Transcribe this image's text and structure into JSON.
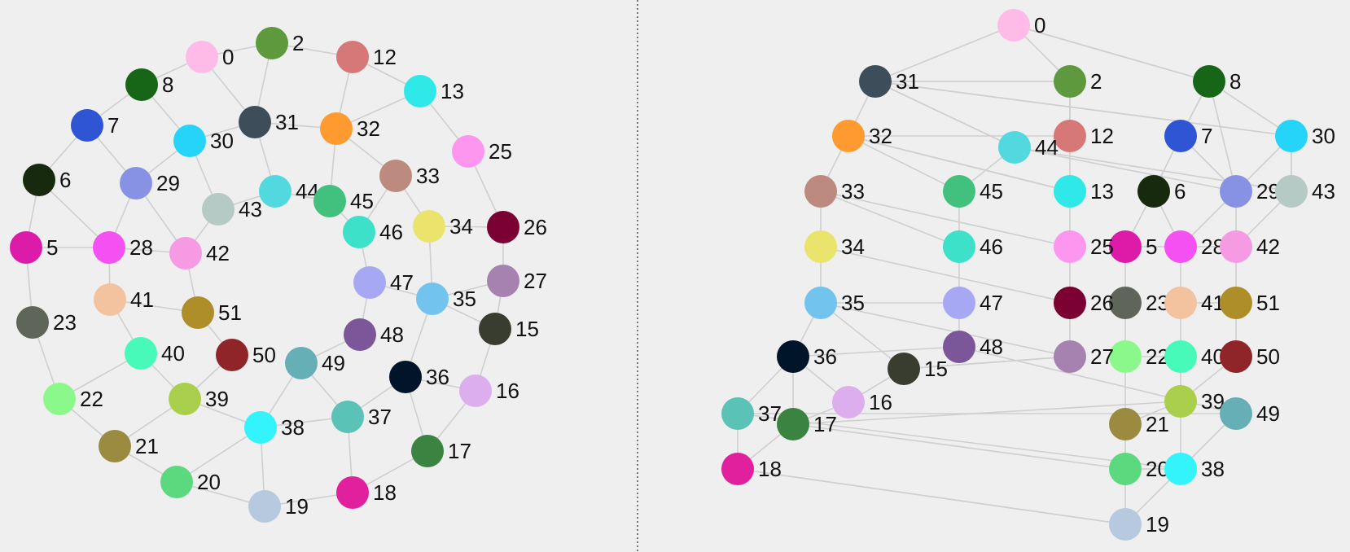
{
  "graph": {
    "nodes": [
      {
        "id": 0,
        "color": "#FFBBE8"
      },
      {
        "id": 2,
        "color": "#5E993D"
      },
      {
        "id": 5,
        "color": "#DC1BA8"
      },
      {
        "id": 6,
        "color": "#172A0E"
      },
      {
        "id": 7,
        "color": "#2F55D4"
      },
      {
        "id": 8,
        "color": "#176617"
      },
      {
        "id": 12,
        "color": "#D57877"
      },
      {
        "id": 13,
        "color": "#2EE9E8"
      },
      {
        "id": 15,
        "color": "#393D2F"
      },
      {
        "id": 16,
        "color": "#DDAEEE"
      },
      {
        "id": 17,
        "color": "#3A8341"
      },
      {
        "id": 18,
        "color": "#E0209C"
      },
      {
        "id": 19,
        "color": "#B6C9DF"
      },
      {
        "id": 20,
        "color": "#5CD97F"
      },
      {
        "id": 21,
        "color": "#9A8B40"
      },
      {
        "id": 22,
        "color": "#8BF88B"
      },
      {
        "id": 23,
        "color": "#5F6559"
      },
      {
        "id": 25,
        "color": "#FD96EF"
      },
      {
        "id": 26,
        "color": "#7A0131"
      },
      {
        "id": 27,
        "color": "#A582B0"
      },
      {
        "id": 28,
        "color": "#F550F1"
      },
      {
        "id": 29,
        "color": "#8892E5"
      },
      {
        "id": 30,
        "color": "#25D4F8"
      },
      {
        "id": 31,
        "color": "#3D4E5A"
      },
      {
        "id": 32,
        "color": "#FE9A30"
      },
      {
        "id": 33,
        "color": "#BC8A7E"
      },
      {
        "id": 34,
        "color": "#EAE46C"
      },
      {
        "id": 35,
        "color": "#73C3EF"
      },
      {
        "id": 36,
        "color": "#00142A"
      },
      {
        "id": 37,
        "color": "#5BC2B7"
      },
      {
        "id": 38,
        "color": "#33F4FB"
      },
      {
        "id": 39,
        "color": "#AACF4D"
      },
      {
        "id": 40,
        "color": "#47FABA"
      },
      {
        "id": 41,
        "color": "#F3C29E"
      },
      {
        "id": 42,
        "color": "#F69AE4"
      },
      {
        "id": 43,
        "color": "#B5C9C5"
      },
      {
        "id": 44,
        "color": "#51D9DF"
      },
      {
        "id": 45,
        "color": "#41C17D"
      },
      {
        "id": 46,
        "color": "#3DE0C9"
      },
      {
        "id": 47,
        "color": "#A6A8F4"
      },
      {
        "id": 48,
        "color": "#7B5699"
      },
      {
        "id": 49,
        "color": "#66AFB6"
      },
      {
        "id": 50,
        "color": "#902529"
      },
      {
        "id": 51,
        "color": "#AE8E29"
      }
    ],
    "edges": [
      [
        0,
        2
      ],
      [
        0,
        8
      ],
      [
        0,
        31
      ],
      [
        2,
        12
      ],
      [
        2,
        31
      ],
      [
        12,
        13
      ],
      [
        12,
        32
      ],
      [
        13,
        32
      ],
      [
        13,
        25
      ],
      [
        8,
        7
      ],
      [
        8,
        30
      ],
      [
        7,
        6
      ],
      [
        7,
        29
      ],
      [
        6,
        5
      ],
      [
        6,
        28
      ],
      [
        5,
        28
      ],
      [
        5,
        23
      ],
      [
        23,
        22
      ],
      [
        22,
        21
      ],
      [
        22,
        40
      ],
      [
        21,
        20
      ],
      [
        20,
        19
      ],
      [
        19,
        18
      ],
      [
        19,
        38
      ],
      [
        20,
        38
      ],
      [
        21,
        39
      ],
      [
        40,
        39
      ],
      [
        40,
        41
      ],
      [
        41,
        28
      ],
      [
        41,
        51
      ],
      [
        28,
        29
      ],
      [
        29,
        30
      ],
      [
        29,
        42
      ],
      [
        28,
        42
      ],
      [
        30,
        31
      ],
      [
        30,
        43
      ],
      [
        31,
        32
      ],
      [
        31,
        44
      ],
      [
        32,
        45
      ],
      [
        32,
        33
      ],
      [
        43,
        44
      ],
      [
        43,
        42
      ],
      [
        42,
        51
      ],
      [
        51,
        50
      ],
      [
        50,
        39
      ],
      [
        39,
        38
      ],
      [
        38,
        37
      ],
      [
        38,
        49
      ],
      [
        37,
        49
      ],
      [
        37,
        36
      ],
      [
        37,
        18
      ],
      [
        18,
        17
      ],
      [
        49,
        48
      ],
      [
        48,
        47
      ],
      [
        47,
        46
      ],
      [
        47,
        35
      ],
      [
        46,
        45
      ],
      [
        45,
        44
      ],
      [
        33,
        46
      ],
      [
        33,
        34
      ],
      [
        34,
        35
      ],
      [
        34,
        26
      ],
      [
        25,
        26
      ],
      [
        26,
        27
      ],
      [
        27,
        35
      ],
      [
        27,
        15
      ],
      [
        35,
        36
      ],
      [
        35,
        15
      ],
      [
        36,
        17
      ],
      [
        15,
        16
      ],
      [
        16,
        17
      ],
      [
        36,
        16
      ]
    ]
  }
}
